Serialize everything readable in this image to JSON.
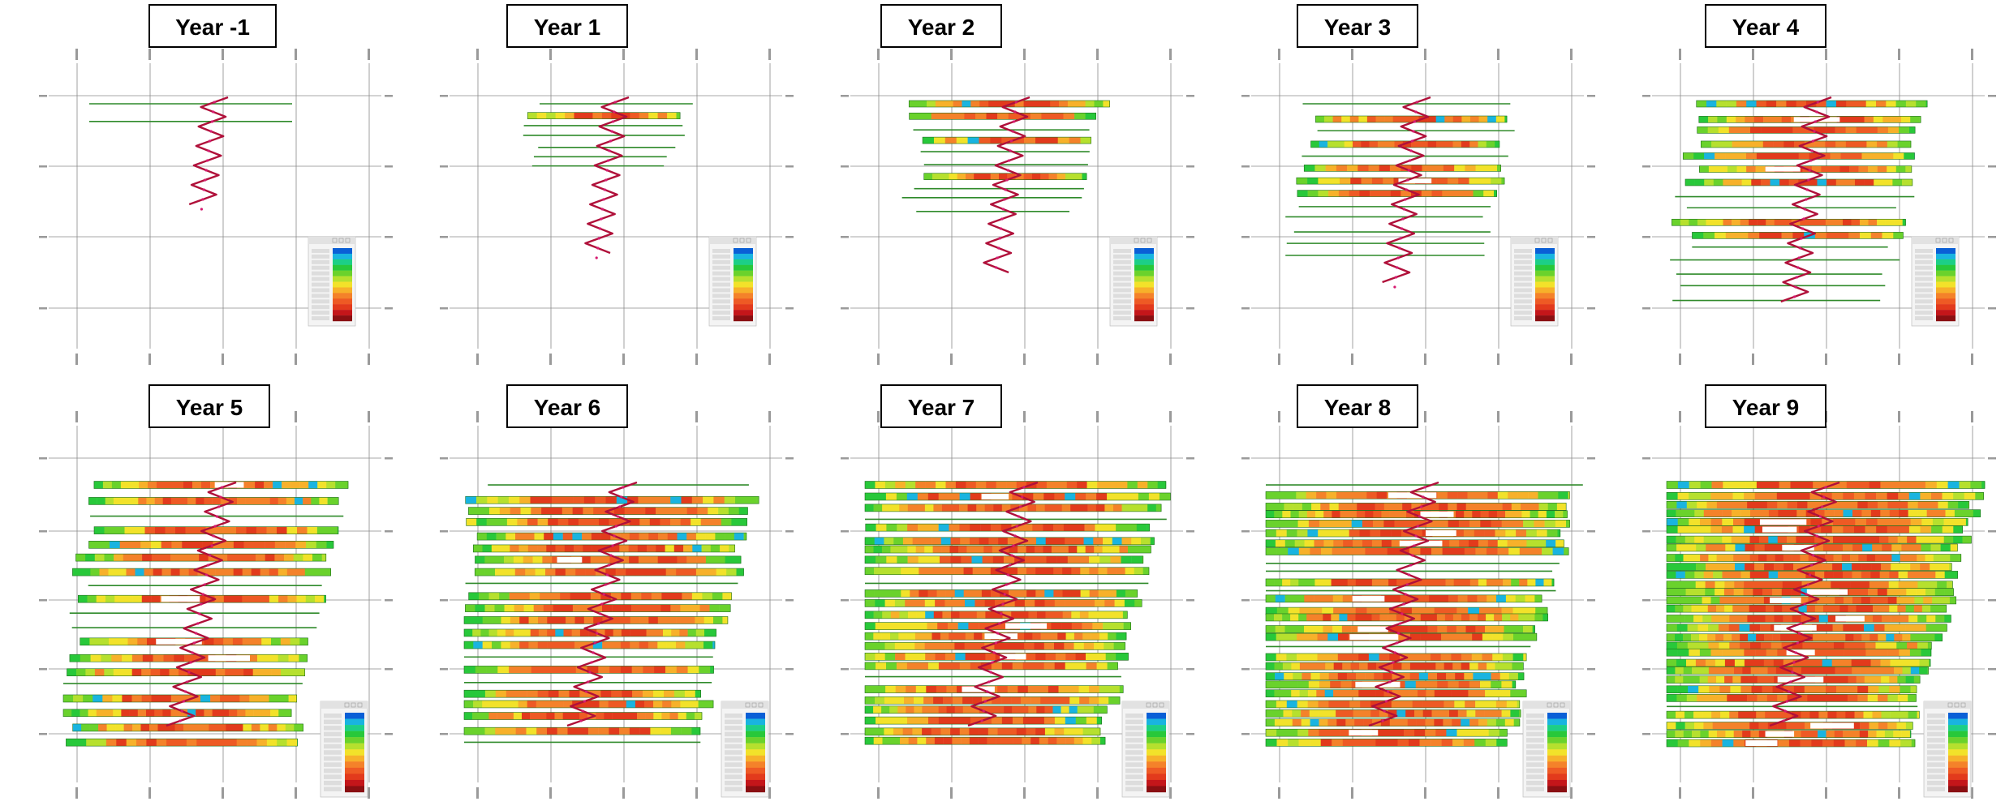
{
  "panels": [
    {
      "label": "Year -1",
      "stage": 0
    },
    {
      "label": "Year 1",
      "stage": 1
    },
    {
      "label": "Year 2",
      "stage": 2
    },
    {
      "label": "Year 3",
      "stage": 3
    },
    {
      "label": "Year 4",
      "stage": 4
    },
    {
      "label": "Year 5",
      "stage": 5
    },
    {
      "label": "Year 6",
      "stage": 6
    },
    {
      "label": "Year 7",
      "stage": 7
    },
    {
      "label": "Year 8",
      "stage": 8
    },
    {
      "label": "Year 9",
      "stage": 9
    }
  ],
  "colors": {
    "scale": [
      "#0a5fd6",
      "#19b4e0",
      "#1ccf86",
      "#28c83a",
      "#6ad22c",
      "#b6e02e",
      "#f2e22a",
      "#f7b12a",
      "#f4822a",
      "#ee5a24",
      "#e23a1c",
      "#c4161a",
      "#8a0f12"
    ],
    "ramp_line": "#b0103a",
    "ramp_marker": "#d61a70",
    "drive_edge": "#1e6e1e",
    "grid_line": "#8a8a8a"
  }
}
